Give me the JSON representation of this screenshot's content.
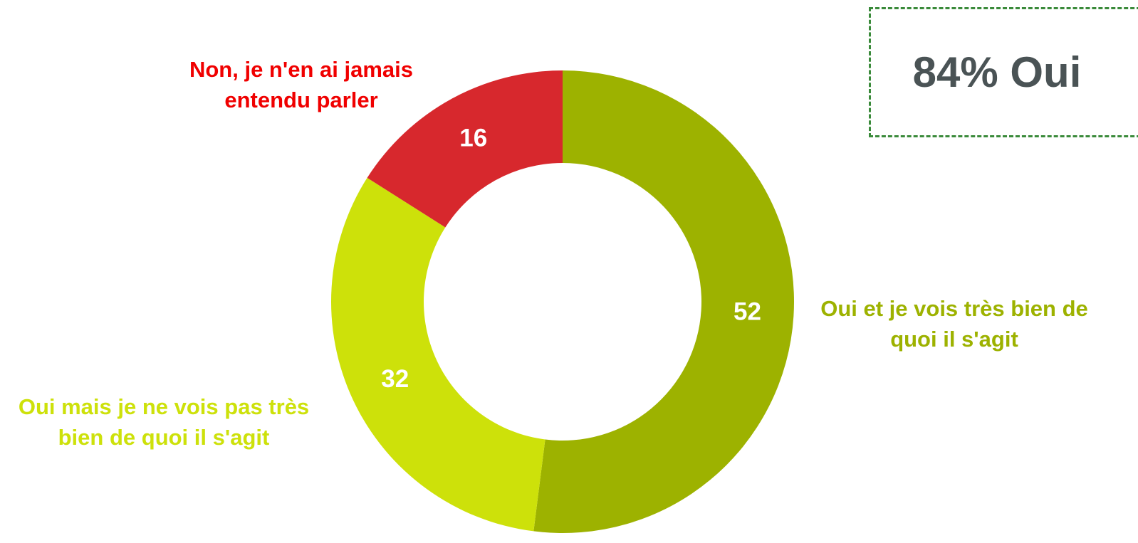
{
  "chart_data": {
    "type": "donut",
    "categories": [
      "Oui et je vois très bien de quoi il s'agit",
      "Oui mais je ne vois pas très bien de quoi il s'agit",
      "Non, je n'en ai jamais entendu parler"
    ],
    "values": [
      52,
      32,
      16
    ],
    "colors": [
      "#9db200",
      "#cde10a",
      "#d7282d"
    ],
    "label_colors": [
      "#9db200",
      "#cde10a",
      "#f00000"
    ],
    "annotation": "84% Oui"
  }
}
